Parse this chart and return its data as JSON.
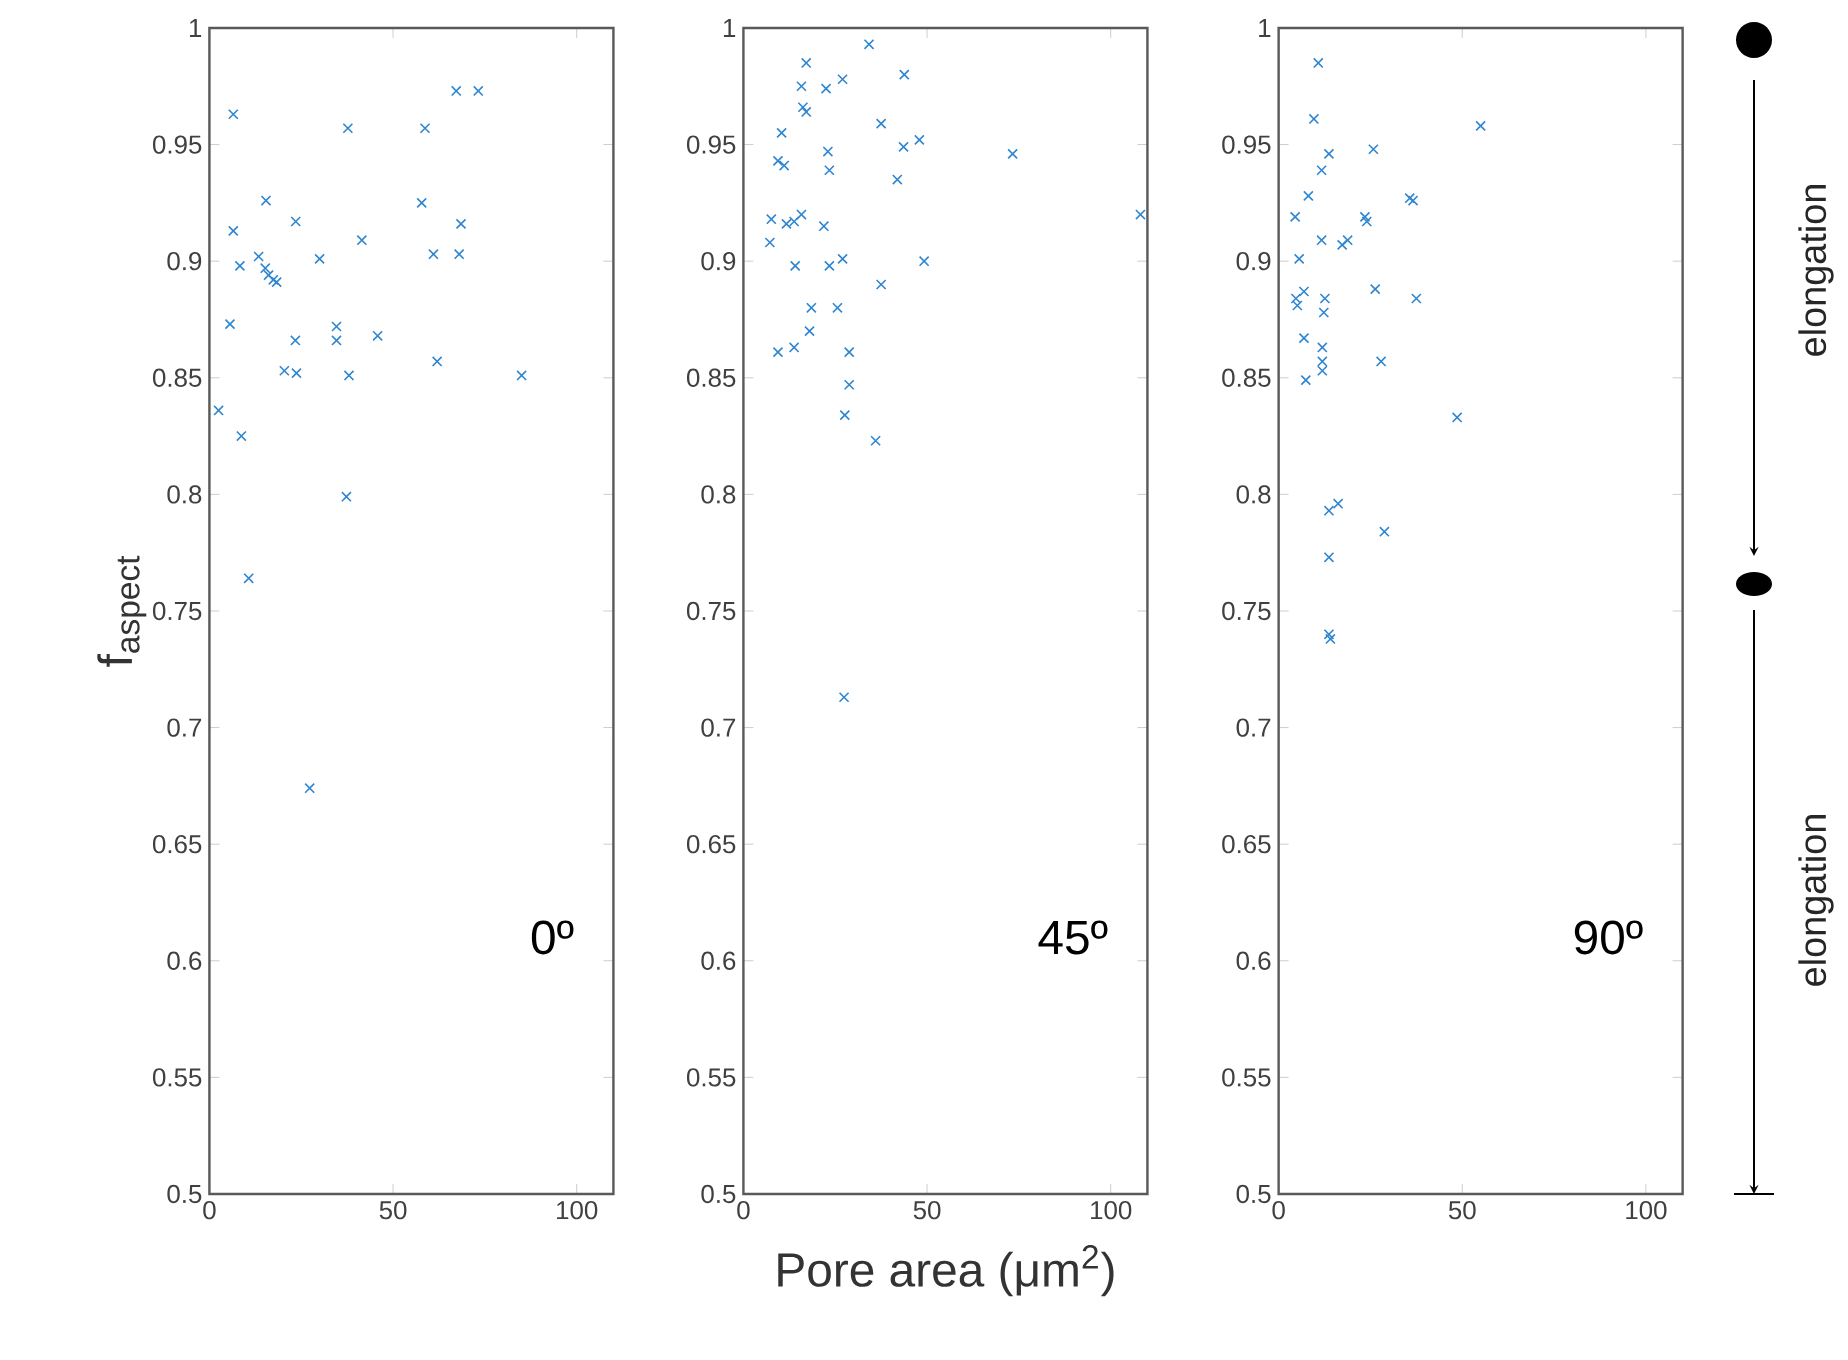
{
  "chart_data": [
    {
      "type": "scatter",
      "ylabel": "f$_{aspect}$",
      "xlim": [
        0,
        110
      ],
      "xticks": [
        0,
        50,
        100
      ],
      "ylim": [
        0.5,
        1
      ],
      "yticks": [
        0.5,
        0.55,
        0.6,
        0.65,
        0.7,
        0.75,
        0.8,
        0.85,
        0.9,
        0.95,
        1
      ],
      "marker": "cross",
      "annotations": [
        "0º"
      ],
      "series": [
        {
          "color": "#2f86d0",
          "x": [
            6.5,
            67.2,
            73.2,
            37.7,
            58.7,
            15.4,
            57.8,
            6.5,
            23.5,
            68.5,
            41.5,
            13.4,
            30,
            61,
            68,
            8.3,
            15.2,
            16.1,
            17.4,
            18.3,
            5.6,
            23.4,
            34.6,
            34.6,
            45.8,
            62,
            20.4,
            23.7,
            38,
            85,
            2.5,
            8.7,
            37.3,
            10.7,
            27.3
          ],
          "values": [
            0.963,
            0.973,
            0.973,
            0.957,
            0.957,
            0.926,
            0.925,
            0.913,
            0.917,
            0.916,
            0.909,
            0.902,
            0.901,
            0.903,
            0.903,
            0.898,
            0.897,
            0.894,
            0.892,
            0.891,
            0.873,
            0.866,
            0.872,
            0.866,
            0.868,
            0.857,
            0.853,
            0.852,
            0.851,
            0.851,
            0.836,
            0.825,
            0.799,
            0.764,
            0.674
          ]
        }
      ]
    },
    {
      "type": "scatter",
      "xlabel": "Pore area (μm$^{2}$)",
      "xlim": [
        0,
        110
      ],
      "xticks": [
        0,
        50,
        100
      ],
      "ylim": [
        0.5,
        1
      ],
      "yticks": [
        0.5,
        0.55,
        0.6,
        0.65,
        0.7,
        0.75,
        0.8,
        0.85,
        0.9,
        0.95,
        1
      ],
      "marker": "cross",
      "annotations": [
        "45º"
      ],
      "series": [
        {
          "color": "#2f86d0",
          "x": [
            34.2,
            17.1,
            15.8,
            22.5,
            27,
            43.8,
            16.2,
            17.1,
            37.5,
            10.4,
            43.6,
            47.9,
            23,
            73.3,
            9.4,
            11.1,
            23.4,
            41.9,
            7.6,
            11.7,
            13.8,
            15.8,
            21.9,
            108.1,
            7.2,
            14.1,
            23.4,
            27,
            49.2,
            37.5,
            18.5,
            25.6,
            18,
            9.4,
            13.8,
            28.8,
            28.8,
            27.6,
            36,
            27.4
          ],
          "values": [
            0.993,
            0.985,
            0.975,
            0.974,
            0.978,
            0.98,
            0.966,
            0.964,
            0.959,
            0.955,
            0.949,
            0.952,
            0.947,
            0.946,
            0.943,
            0.941,
            0.939,
            0.935,
            0.918,
            0.916,
            0.917,
            0.92,
            0.915,
            0.92,
            0.908,
            0.898,
            0.898,
            0.901,
            0.9,
            0.89,
            0.88,
            0.88,
            0.87,
            0.861,
            0.863,
            0.861,
            0.847,
            0.834,
            0.823,
            0.713
          ]
        }
      ]
    },
    {
      "type": "scatter",
      "xlim": [
        0,
        110
      ],
      "xticks": [
        0,
        50,
        100
      ],
      "ylim": [
        0.5,
        1
      ],
      "yticks": [
        0.5,
        0.55,
        0.6,
        0.65,
        0.7,
        0.75,
        0.8,
        0.85,
        0.9,
        0.95,
        1
      ],
      "marker": "cross",
      "annotations": [
        "90º",
        "elongation",
        "elongation"
      ],
      "series": [
        {
          "color": "#2f86d0",
          "x": [
            10.8,
            9.6,
            55,
            13.7,
            25.8,
            11.7,
            8.1,
            35.7,
            36.6,
            4.5,
            23.5,
            24,
            11.7,
            17.3,
            18.8,
            5.6,
            6.9,
            4.7,
            5.1,
            12.6,
            26.3,
            37.5,
            12.3,
            6.9,
            11.9,
            11.9,
            27.9,
            11.9,
            7.4,
            48.6,
            16.2,
            13.7,
            28.8,
            13.7,
            13.7,
            14.1
          ],
          "values": [
            0.985,
            0.961,
            0.958,
            0.946,
            0.948,
            0.939,
            0.928,
            0.927,
            0.926,
            0.919,
            0.919,
            0.917,
            0.909,
            0.907,
            0.909,
            0.901,
            0.887,
            0.884,
            0.881,
            0.884,
            0.888,
            0.884,
            0.878,
            0.867,
            0.863,
            0.857,
            0.857,
            0.853,
            0.849,
            0.833,
            0.796,
            0.793,
            0.784,
            0.773,
            0.74,
            0.738
          ]
        }
      ]
    }
  ]
}
